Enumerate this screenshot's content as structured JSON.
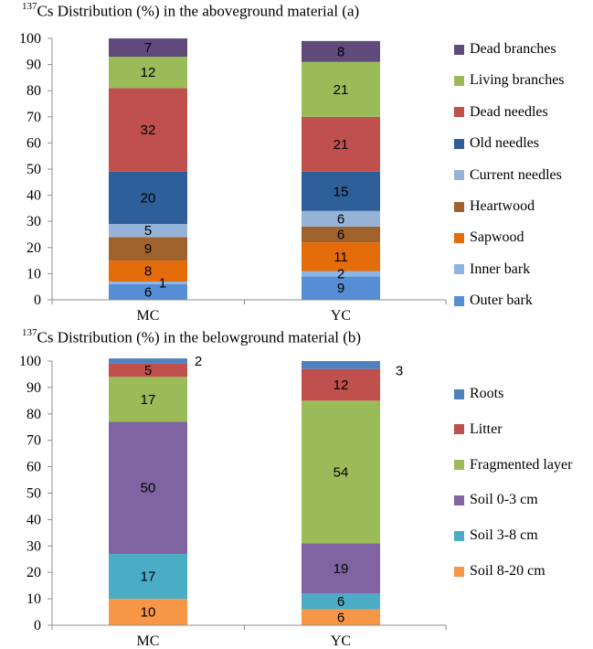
{
  "chart_data": [
    {
      "type": "bar",
      "stacked": true,
      "title_superscript": "137",
      "title": "Cs Distribution (%) in the aboveground material (a)",
      "categories": [
        "MC",
        "YC"
      ],
      "ylim": [
        0,
        100
      ],
      "yticks": [
        "0",
        "10",
        "20",
        "30",
        "40",
        "50",
        "60",
        "70",
        "80",
        "90",
        "100"
      ],
      "grid": false,
      "legend_position": "right",
      "series": [
        {
          "name": "Outer bark",
          "color": "#558ED5",
          "values": [
            6,
            9
          ],
          "labels": [
            "6",
            "9"
          ]
        },
        {
          "name": "Inner bark",
          "color": "#8EB4E3",
          "values": [
            1,
            2
          ],
          "labels": [
            "1",
            "2"
          ]
        },
        {
          "name": "Sapwood",
          "color": "#E46C0A",
          "values": [
            8,
            11
          ],
          "labels": [
            "8",
            "11"
          ]
        },
        {
          "name": "Heartwood",
          "color": "#A0622D",
          "values": [
            9,
            6
          ],
          "labels": [
            "9",
            "6"
          ]
        },
        {
          "name": "Current needles",
          "color": "#95B3D7",
          "values": [
            5,
            6
          ],
          "labels": [
            "5",
            "6"
          ]
        },
        {
          "name": "Old needles",
          "color": "#2F5F98",
          "values": [
            20,
            15
          ],
          "labels": [
            "20",
            "15"
          ]
        },
        {
          "name": "Dead needles",
          "color": "#C0504D",
          "values": [
            32,
            21
          ],
          "labels": [
            "32",
            "21"
          ]
        },
        {
          "name": "Living branches",
          "color": "#9BBB59",
          "values": [
            12,
            21
          ],
          "labels": [
            "12",
            "21"
          ]
        },
        {
          "name": "Dead branches",
          "color": "#604A7B",
          "values": [
            7,
            8
          ],
          "labels": [
            "7",
            "8"
          ]
        }
      ]
    },
    {
      "type": "bar",
      "stacked": true,
      "title_superscript": "137",
      "title": "Cs Distribution (%) in the belowground material (b)",
      "categories": [
        "MC",
        "YC"
      ],
      "ylim": [
        0,
        100
      ],
      "yticks": [
        "0",
        "10",
        "20",
        "30",
        "40",
        "50",
        "60",
        "70",
        "80",
        "90",
        "100"
      ],
      "grid": false,
      "legend_position": "right",
      "series": [
        {
          "name": "Soil 8-20 cm",
          "color": "#F79646",
          "values": [
            10,
            6
          ],
          "labels": [
            "10",
            "6"
          ]
        },
        {
          "name": "Soil 3-8 cm",
          "color": "#4BACC6",
          "values": [
            17,
            6
          ],
          "labels": [
            "17",
            "6"
          ]
        },
        {
          "name": "Soil 0-3 cm",
          "color": "#8064A2",
          "values": [
            50,
            19
          ],
          "labels": [
            "50",
            "19"
          ]
        },
        {
          "name": "Fragmented layer",
          "color": "#9BBB59",
          "values": [
            17,
            54
          ],
          "labels": [
            "17",
            "54"
          ]
        },
        {
          "name": "Litter",
          "color": "#C0504D",
          "values": [
            5,
            12
          ],
          "labels": [
            "5",
            "12"
          ]
        },
        {
          "name": "Roots",
          "color": "#4F81BD",
          "values": [
            2,
            3
          ],
          "labels": [
            "2",
            "3"
          ]
        }
      ]
    }
  ]
}
